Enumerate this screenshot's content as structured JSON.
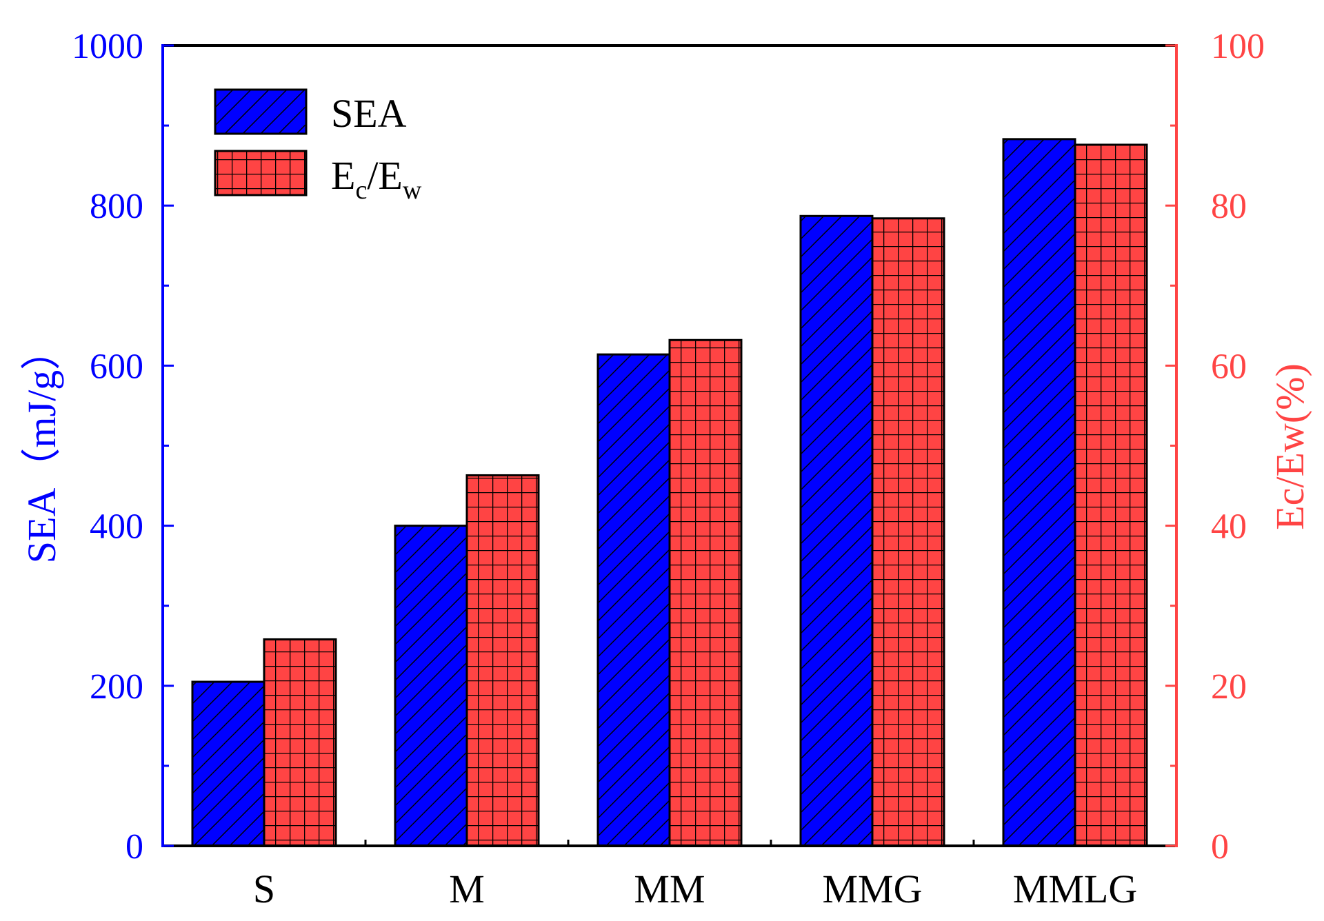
{
  "chart_data": {
    "type": "bar",
    "categories": [
      "S",
      "M",
      "MM",
      "MMG",
      "MMLG"
    ],
    "series": [
      {
        "name": "SEA",
        "axis": "left",
        "values": [
          205,
          400,
          614,
          787,
          883
        ],
        "color": "#0000ff",
        "pattern": "diagonal-hatch"
      },
      {
        "name": "Ec/Ew",
        "axis": "right",
        "values": [
          25.8,
          46.3,
          63.2,
          78.4,
          87.6
        ],
        "color": "#ff4444",
        "pattern": "grid"
      }
    ],
    "legend": [
      {
        "label_main": "SEA"
      },
      {
        "label_main": "E",
        "sub1": "c",
        "mid": "/E",
        "sub2": "w"
      }
    ],
    "left_axis": {
      "label": "SEA（mJ/g）",
      "range": [
        0,
        1000
      ],
      "ticks": [
        "0",
        "200",
        "400",
        "600",
        "800",
        "1000"
      ],
      "color": "#0000ff"
    },
    "right_axis": {
      "label": "Ec/Ew(%)",
      "range": [
        0,
        100
      ],
      "ticks": [
        "0",
        "20",
        "40",
        "60",
        "80",
        "100"
      ],
      "color": "#ff4444"
    },
    "legend_position": "top-left",
    "grid": false
  }
}
